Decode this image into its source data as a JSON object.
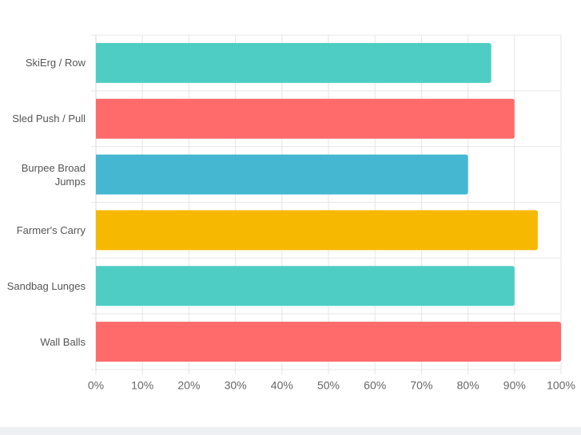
{
  "chart_data": {
    "type": "bar",
    "orientation": "horizontal",
    "categories": [
      "SkiErg / Row",
      "Sled Push / Pull",
      "Burpee Broad Jumps",
      "Farmer's Carry",
      "Sandbag Lunges",
      "Wall Balls"
    ],
    "values": [
      85,
      90,
      80,
      95,
      90,
      100
    ],
    "colors": [
      "#4ecdc4",
      "#ff6b6b",
      "#45b7d1",
      "#f7b801",
      "#4ecdc4",
      "#ff6b6b"
    ],
    "xlim": [
      0,
      100
    ],
    "xticks": [
      {
        "value": 0,
        "label": "0%"
      },
      {
        "value": 10,
        "label": "10%"
      },
      {
        "value": 20,
        "label": "20%"
      },
      {
        "value": 30,
        "label": "30%"
      },
      {
        "value": 40,
        "label": "40%"
      },
      {
        "value": 50,
        "label": "50%"
      },
      {
        "value": 60,
        "label": "60%"
      },
      {
        "value": 70,
        "label": "70%"
      },
      {
        "value": 80,
        "label": "80%"
      },
      {
        "value": 90,
        "label": "90%"
      },
      {
        "value": 100,
        "label": "100%"
      }
    ],
    "grid": true
  }
}
